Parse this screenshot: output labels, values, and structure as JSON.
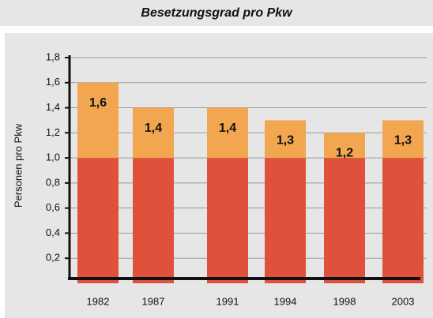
{
  "chart_data": {
    "type": "stacked_bar",
    "title": "Besetzungsgrad pro Pkw",
    "y_label": "Personen pro Pkw",
    "categories": [
      "1982",
      "1987",
      "1991",
      "1994",
      "1998",
      "2003"
    ],
    "series": [
      {
        "color": "#e0513b",
        "values": [
          1.0,
          1.0,
          1.0,
          1.0,
          1.0,
          1.0
        ]
      },
      {
        "color": "#f2a650",
        "values": [
          0.6,
          0.4,
          0.4,
          0.3,
          0.2,
          0.3
        ]
      }
    ],
    "totals": [
      1.6,
      1.4,
      1.4,
      1.3,
      1.2,
      1.3
    ],
    "total_labels": [
      "1,6",
      "1,4",
      "1,4",
      "1,3",
      "1,2",
      "1,3"
    ],
    "ylim": [
      0,
      1.8
    ],
    "yticks": [
      {
        "value": 0.2,
        "label": "0,2"
      },
      {
        "value": 0.4,
        "label": "0,4"
      },
      {
        "value": 0.6,
        "label": "0,6"
      },
      {
        "value": 0.8,
        "label": "0,8"
      },
      {
        "value": 1.0,
        "label": "1,0"
      },
      {
        "value": 1.2,
        "label": "1,2"
      },
      {
        "value": 1.4,
        "label": "1,4"
      },
      {
        "value": 1.6,
        "label": "1,6"
      },
      {
        "value": 1.8,
        "label": "1,8"
      }
    ],
    "grid": true
  }
}
